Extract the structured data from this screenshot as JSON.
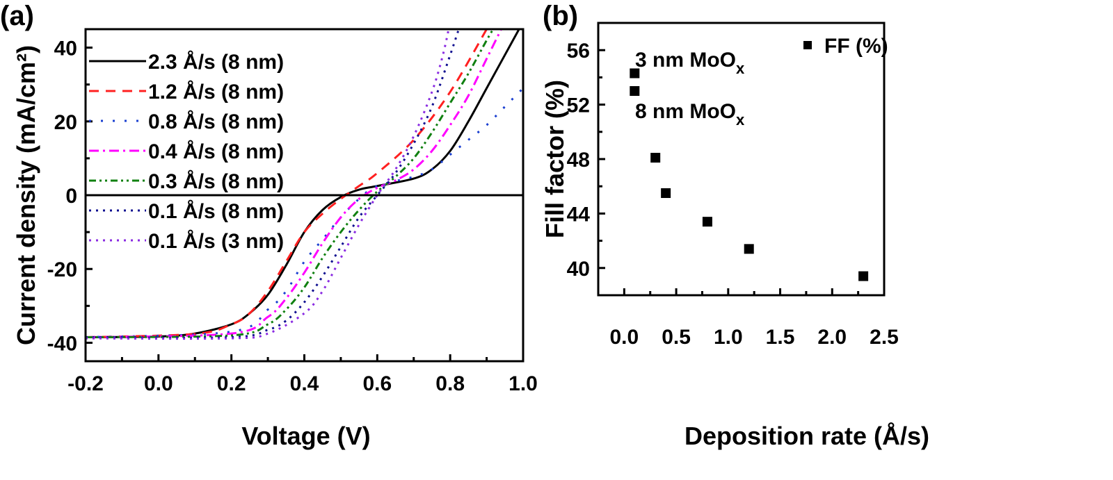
{
  "chart_data": [
    {
      "panel": "(a)",
      "type": "line",
      "xlabel": "Voltage (V)",
      "ylabel": "Current density (mA/cm²)",
      "xlim": [
        -0.2,
        1.0
      ],
      "ylim": [
        -45,
        45
      ],
      "xticks": [
        "-0.2",
        "0.0",
        "0.2",
        "0.4",
        "0.6",
        "0.8",
        "1.0"
      ],
      "yticks": [
        "-40",
        "-20",
        "0",
        "20",
        "40"
      ],
      "legend_position": "top-left",
      "series": [
        {
          "name": "2.3 Å/s (8 nm)",
          "color": "#000000",
          "dash": "solid",
          "points": [
            [
              -0.2,
              -38.5
            ],
            [
              0,
              -38.3
            ],
            [
              0.1,
              -37.5
            ],
            [
              0.2,
              -35
            ],
            [
              0.25,
              -32
            ],
            [
              0.3,
              -27
            ],
            [
              0.35,
              -19
            ],
            [
              0.4,
              -10
            ],
            [
              0.45,
              -4
            ],
            [
              0.5,
              -0.5
            ],
            [
              0.55,
              1.5
            ],
            [
              0.6,
              2.5
            ],
            [
              0.7,
              4.5
            ],
            [
              0.75,
              7
            ],
            [
              0.8,
              12
            ],
            [
              0.85,
              20
            ],
            [
              0.9,
              29
            ],
            [
              0.95,
              38
            ],
            [
              1.0,
              47
            ]
          ]
        },
        {
          "name": "1.2 Å/s (8 nm)",
          "color": "#ff2020",
          "dash": "dash",
          "points": [
            [
              -0.2,
              -38.5
            ],
            [
              0.1,
              -37.6
            ],
            [
              0.2,
              -35
            ],
            [
              0.25,
              -32
            ],
            [
              0.3,
              -26
            ],
            [
              0.35,
              -18
            ],
            [
              0.4,
              -10
            ],
            [
              0.45,
              -5
            ],
            [
              0.5,
              -1
            ],
            [
              0.55,
              2.5
            ],
            [
              0.6,
              6
            ],
            [
              0.7,
              15
            ],
            [
              0.8,
              28
            ],
            [
              0.9,
              45
            ]
          ]
        },
        {
          "name": "0.8 Å/s (8 nm)",
          "color": "#1a3fd0",
          "dash": "dot-sparse",
          "points": [
            [
              -0.2,
              -38.5
            ],
            [
              0.2,
              -37
            ],
            [
              0.3,
              -31
            ],
            [
              0.35,
              -26
            ],
            [
              0.4,
              -18
            ],
            [
              0.45,
              -12
            ],
            [
              0.5,
              -6
            ],
            [
              0.55,
              -1
            ],
            [
              0.6,
              2.5
            ],
            [
              0.7,
              5
            ],
            [
              0.75,
              7
            ],
            [
              0.8,
              11
            ],
            [
              0.85,
              15
            ],
            [
              0.9,
              19
            ],
            [
              0.95,
              24
            ],
            [
              1.0,
              29
            ]
          ]
        },
        {
          "name": "0.4 Å/s (8 nm)",
          "color": "#ff00ff",
          "dash": "dashdot",
          "points": [
            [
              -0.2,
              -38.5
            ],
            [
              0.2,
              -37.5
            ],
            [
              0.3,
              -33
            ],
            [
              0.35,
              -28
            ],
            [
              0.4,
              -21
            ],
            [
              0.45,
              -13
            ],
            [
              0.5,
              -6
            ],
            [
              0.55,
              -1
            ],
            [
              0.6,
              2
            ],
            [
              0.65,
              4
            ],
            [
              0.7,
              7
            ],
            [
              0.75,
              12
            ],
            [
              0.8,
              19
            ],
            [
              0.85,
              27
            ],
            [
              0.9,
              37
            ],
            [
              0.95,
              47
            ]
          ]
        },
        {
          "name": "0.3 Å/s (8 nm)",
          "color": "#108010",
          "dash": "dashdotdot",
          "points": [
            [
              -0.2,
              -38.5
            ],
            [
              0.2,
              -38
            ],
            [
              0.3,
              -35
            ],
            [
              0.35,
              -31
            ],
            [
              0.4,
              -25
            ],
            [
              0.45,
              -17
            ],
            [
              0.5,
              -10
            ],
            [
              0.55,
              -4
            ],
            [
              0.6,
              1
            ],
            [
              0.65,
              5
            ],
            [
              0.7,
              10
            ],
            [
              0.75,
              17
            ],
            [
              0.8,
              25
            ],
            [
              0.85,
              33
            ],
            [
              0.9,
              42
            ],
            [
              0.93,
              47
            ]
          ]
        },
        {
          "name": "0.1 Å/s (8 nm)",
          "color": "#101090",
          "dash": "dot",
          "points": [
            [
              -0.2,
              -38.5
            ],
            [
              0.2,
              -38.5
            ],
            [
              0.3,
              -36.5
            ],
            [
              0.35,
              -34
            ],
            [
              0.4,
              -29
            ],
            [
              0.45,
              -22
            ],
            [
              0.5,
              -14
            ],
            [
              0.55,
              -6
            ],
            [
              0.6,
              0
            ],
            [
              0.65,
              6
            ],
            [
              0.7,
              14
            ],
            [
              0.75,
              24
            ],
            [
              0.8,
              38
            ],
            [
              0.83,
              47
            ]
          ]
        },
        {
          "name": "0.1 Å/s (3 nm)",
          "color": "#8a2be2",
          "dash": "dot",
          "points": [
            [
              -0.2,
              -38.8
            ],
            [
              0.2,
              -38.8
            ],
            [
              0.3,
              -37.5
            ],
            [
              0.4,
              -32
            ],
            [
              0.45,
              -26
            ],
            [
              0.5,
              -17
            ],
            [
              0.55,
              -8
            ],
            [
              0.6,
              0
            ],
            [
              0.65,
              7
            ],
            [
              0.7,
              16
            ],
            [
              0.75,
              28
            ],
            [
              0.78,
              38
            ],
            [
              0.8,
              47
            ]
          ]
        }
      ]
    },
    {
      "panel": "(b)",
      "type": "scatter",
      "xlabel": "Deposition rate (Å/s)",
      "ylabel": "Fill factor (%)",
      "xlim": [
        -0.25,
        2.5
      ],
      "ylim": [
        38,
        58
      ],
      "xticks": [
        "0.0",
        "0.5",
        "1.0",
        "1.5",
        "2.0",
        "2.5"
      ],
      "yticks": [
        "40",
        "44",
        "48",
        "52",
        "56"
      ],
      "legend": "FF (%)",
      "legend_position": "top-right",
      "x": [
        0.1,
        0.1,
        0.3,
        0.4,
        0.8,
        1.2,
        2.3
      ],
      "y": [
        54.3,
        53.0,
        48.1,
        45.5,
        43.4,
        41.4,
        39.4
      ],
      "annotations": [
        {
          "text": "3 nm MoO",
          "sub": "x"
        },
        {
          "text": "8 nm MoO",
          "sub": "x"
        }
      ]
    }
  ]
}
